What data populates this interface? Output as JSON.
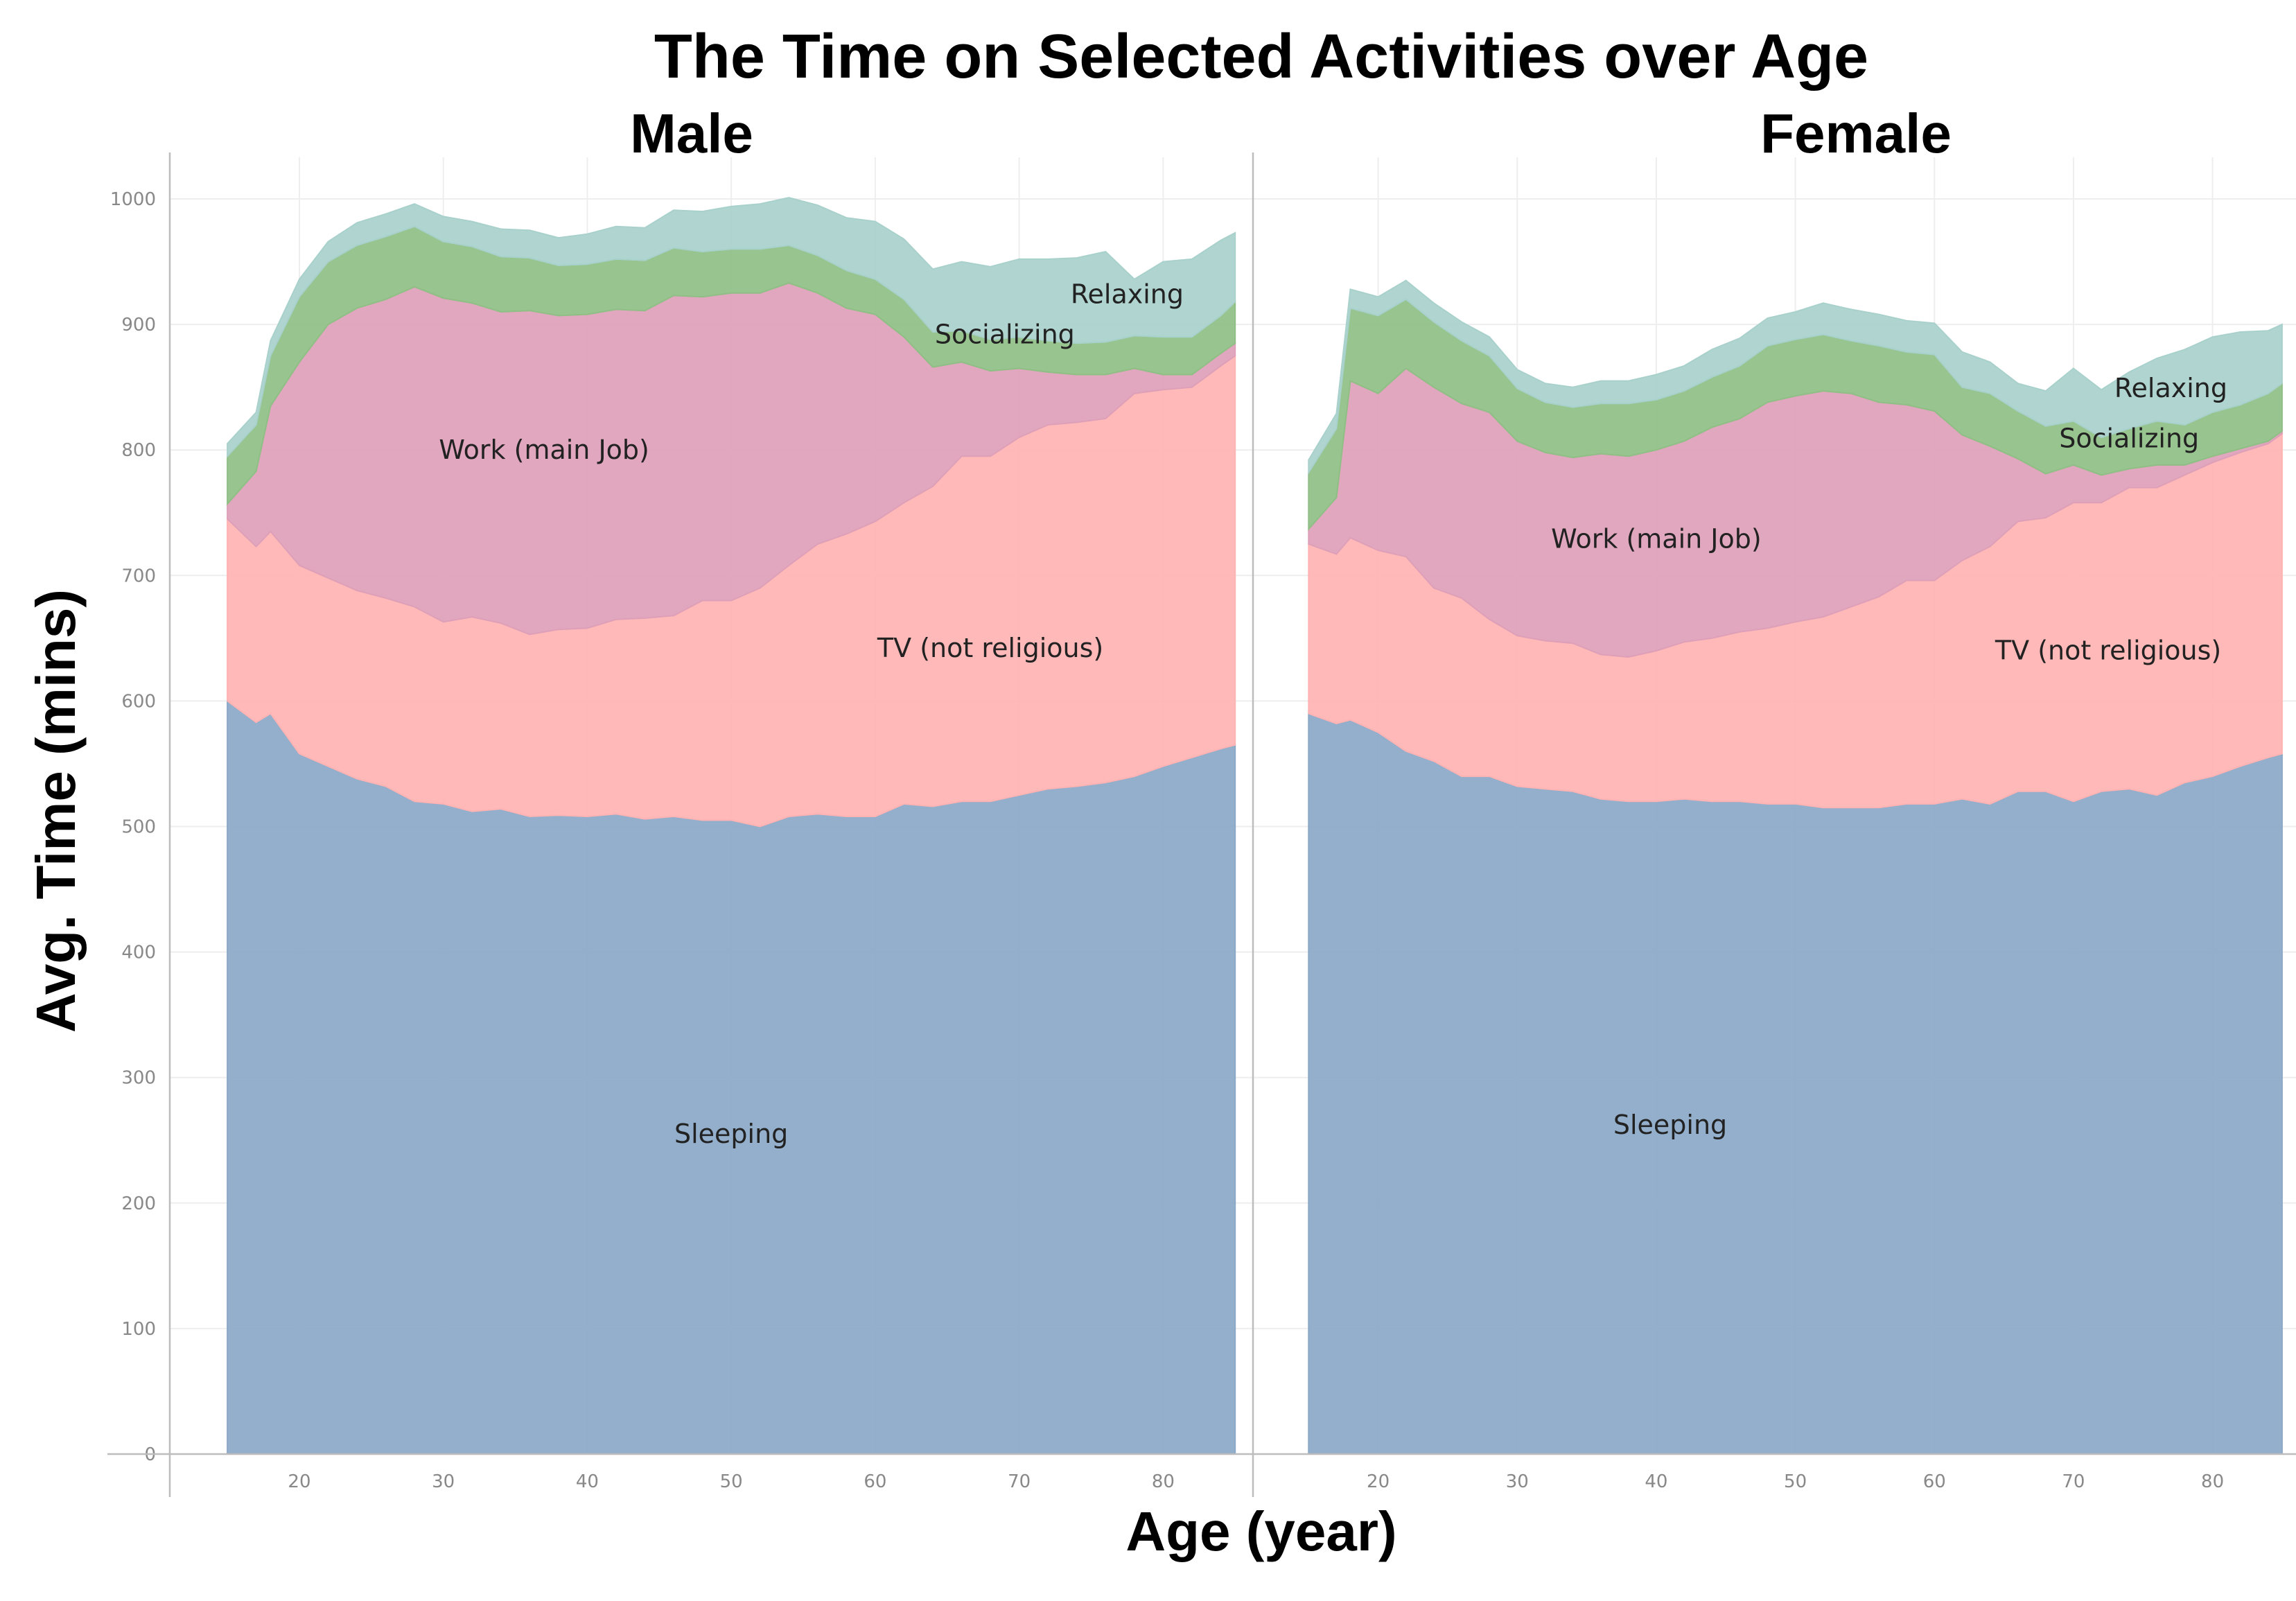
{
  "chart_data": {
    "type": "area",
    "stacked": true,
    "title": "The Time on Selected Activities over Age",
    "xlabel": "Age (year)",
    "ylabel": "Avg.  Time (mins)",
    "xlim": [
      11,
      86
    ],
    "ylim": [
      0,
      1000
    ],
    "x_ticks": [
      20,
      30,
      40,
      50,
      60,
      70,
      80
    ],
    "y_ticks": [
      0,
      100,
      200,
      300,
      400,
      500,
      600,
      700,
      800,
      900,
      1000
    ],
    "grid": true,
    "legend": "none",
    "colors": {
      "Sleeping": "#8aa8c8",
      "TV (not religious)": "#ffb3b3",
      "Work (main Job)": "#dda0b8",
      "Socializing": "#8fbf85",
      "Relaxing": "#a9d1cc"
    },
    "x": [
      15,
      17,
      18,
      20,
      22,
      24,
      26,
      28,
      30,
      32,
      34,
      36,
      38,
      40,
      42,
      44,
      46,
      48,
      50,
      52,
      54,
      56,
      58,
      60,
      62,
      64,
      66,
      68,
      70,
      72,
      74,
      76,
      78,
      80,
      82,
      84,
      85
    ],
    "panels": [
      {
        "name": "Male",
        "series_labels": [
          {
            "series": "Sleeping",
            "text": "Sleeping",
            "x": 50,
            "y": 248
          },
          {
            "series": "TV (not religious)",
            "text": "TV (not religious)",
            "x": 68,
            "y": 635
          },
          {
            "series": "Work (main Job)",
            "text": "Work (main Job)",
            "x": 37,
            "y": 793
          },
          {
            "series": "Socializing",
            "text": "Socializing",
            "x": 69,
            "y": 885
          },
          {
            "series": "Relaxing",
            "text": "Relaxing",
            "x": 77.5,
            "y": 917
          }
        ],
        "series": [
          {
            "name": "Sleeping",
            "values": [
              600,
              583,
              590,
              558,
              548,
              538,
              532,
              520,
              518,
              512,
              514,
              508,
              509,
              508,
              510,
              506,
              508,
              505,
              505,
              500,
              508,
              510,
              508,
              508,
              518,
              516,
              520,
              520,
              525,
              530,
              532,
              535,
              540,
              548,
              555,
              562,
              565
            ]
          },
          {
            "name": "TV (not religious)",
            "values": [
              145,
              140,
              145,
              150,
              150,
              150,
              150,
              155,
              145,
              155,
              148,
              145,
              148,
              150,
              155,
              160,
              160,
              175,
              175,
              190,
              200,
              215,
              225,
              235,
              240,
              255,
              275,
              275,
              285,
              290,
              290,
              290,
              305,
              300,
              295,
              305,
              310
            ]
          },
          {
            "name": "Work (main Job)",
            "values": [
              12,
              60,
              100,
              162,
              202,
              225,
              238,
              255,
              258,
              250,
              248,
              258,
              250,
              250,
              247,
              245,
              255,
              242,
              245,
              235,
              225,
              200,
              180,
              165,
              132,
              95,
              75,
              68,
              55,
              42,
              38,
              35,
              20,
              12,
              10,
              10,
              10
            ]
          },
          {
            "name": "Socializing",
            "values": [
              38,
              37,
              40,
              52,
              50,
              50,
              50,
              48,
              45,
              45,
              44,
              42,
              40,
              40,
              40,
              40,
              38,
              36,
              35,
              35,
              30,
              30,
              30,
              28,
              30,
              28,
              25,
              25,
              25,
              25,
              25,
              26,
              26,
              30,
              30,
              30,
              33
            ]
          },
          {
            "name": "Relaxing",
            "values": [
              10,
              10,
              12,
              14,
              16,
              18,
              18,
              18,
              20,
              20,
              22,
              22,
              22,
              24,
              26,
              26,
              30,
              32,
              34,
              36,
              38,
              40,
              42,
              46,
              48,
              50,
              55,
              58,
              62,
              65,
              68,
              72,
              45,
              60,
              62,
              60,
              55
            ]
          }
        ]
      },
      {
        "name": "Female",
        "series_labels": [
          {
            "series": "Sleeping",
            "text": "Sleeping",
            "x": 41,
            "y": 255
          },
          {
            "series": "TV (not religious)",
            "text": "TV (not religious)",
            "x": 72.5,
            "y": 633
          },
          {
            "series": "Work (main Job)",
            "text": "Work (main Job)",
            "x": 40,
            "y": 722
          },
          {
            "series": "Socializing",
            "text": "Socializing",
            "x": 74,
            "y": 802
          },
          {
            "series": "Relaxing",
            "text": "Relaxing",
            "x": 77,
            "y": 842
          }
        ],
        "series": [
          {
            "name": "Sleeping",
            "values": [
              590,
              582,
              585,
              575,
              560,
              552,
              540,
              540,
              532,
              530,
              528,
              522,
              520,
              520,
              522,
              520,
              520,
              518,
              518,
              515,
              515,
              515,
              518,
              518,
              522,
              518,
              528,
              528,
              520,
              528,
              530,
              525,
              535,
              540,
              548,
              555,
              558
            ]
          },
          {
            "name": "TV (not religious)",
            "values": [
              135,
              135,
              145,
              145,
              155,
              138,
              142,
              125,
              120,
              118,
              118,
              115,
              115,
              120,
              125,
              130,
              135,
              140,
              145,
              152,
              160,
              168,
              178,
              178,
              190,
              205,
              215,
              218,
              238,
              230,
              240,
              245,
              245,
              250,
              250,
              250,
              255
            ]
          },
          {
            "name": "Work (main Job)",
            "values": [
              12,
              45,
              125,
              125,
              150,
              160,
              155,
              165,
              155,
              150,
              148,
              160,
              160,
              160,
              160,
              168,
              170,
              180,
              180,
              180,
              170,
              155,
              140,
              135,
              100,
              80,
              50,
              35,
              30,
              22,
              15,
              18,
              8,
              5,
              3,
              2,
              2
            ]
          },
          {
            "name": "Socializing",
            "values": [
              45,
              55,
              58,
              62,
              55,
              52,
              50,
              45,
              42,
              40,
              40,
              40,
              42,
              40,
              40,
              40,
              42,
              45,
              45,
              45,
              42,
              45,
              42,
              45,
              38,
              42,
              38,
              38,
              35,
              30,
              32,
              35,
              32,
              35,
              35,
              38,
              38
            ]
          },
          {
            "name": "Relaxing",
            "values": [
              10,
              12,
              15,
              15,
              15,
              15,
              15,
              15,
              15,
              15,
              16,
              18,
              18,
              20,
              20,
              22,
              22,
              22,
              22,
              25,
              25,
              25,
              25,
              25,
              28,
              25,
              22,
              28,
              42,
              38,
              45,
              50,
              60,
              60,
              58,
              50,
              47
            ]
          }
        ]
      }
    ]
  }
}
